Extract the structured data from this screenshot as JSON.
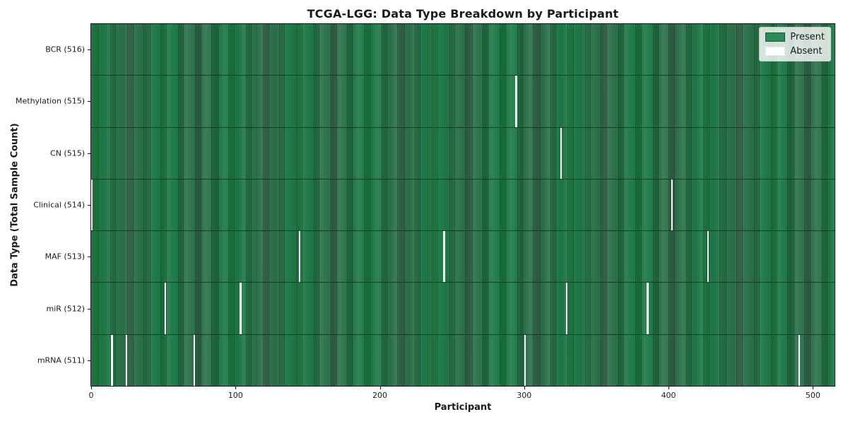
{
  "title": "TCGA-LGG: Data Type Breakdown by Participant",
  "xlabel": "Participant",
  "ylabel": "Data Type (Total Sample Count)",
  "legend": {
    "present_label": "Present",
    "absent_label": "Absent"
  },
  "chart_data": {
    "type": "heatmap",
    "title": "TCGA-LGG: Data Type Breakdown by Participant",
    "xlabel": "Participant",
    "ylabel": "Data Type (Total Sample Count)",
    "total_participants": 516,
    "x_axis_ticks": [
      0,
      100,
      200,
      300,
      400,
      500
    ],
    "legend_entries": [
      {
        "label": "Present",
        "color": "#2e8b57"
      },
      {
        "label": "Absent",
        "color": "#ffffff"
      }
    ],
    "grid": false,
    "legend_position": "upper right",
    "rows": [
      {
        "label": "BCR (516)",
        "data_type": "BCR",
        "sample_count": 516,
        "absent_participants": []
      },
      {
        "label": "Methylation (515)",
        "data_type": "Methylation",
        "sample_count": 515,
        "absent_participants": [
          294
        ]
      },
      {
        "label": "CN (515)",
        "data_type": "CN",
        "sample_count": 515,
        "absent_participants": [
          325
        ]
      },
      {
        "label": "Clinical (514)",
        "data_type": "Clinical",
        "sample_count": 514,
        "absent_participants": [
          0,
          402
        ]
      },
      {
        "label": "MAF (513)",
        "data_type": "MAF",
        "sample_count": 513,
        "absent_participants": [
          144,
          244,
          427
        ]
      },
      {
        "label": "miR (512)",
        "data_type": "miR",
        "sample_count": 512,
        "absent_participants": [
          51,
          103,
          329,
          385
        ]
      },
      {
        "label": "mRNA (511)",
        "data_type": "mRNA",
        "sample_count": 511,
        "absent_participants": [
          14,
          24,
          71,
          300,
          490
        ]
      }
    ],
    "colors": {
      "present": "#2e8b57",
      "present_edge": "#14422a",
      "absent": "#ffffff",
      "legend_background": "#d9e8df"
    }
  }
}
